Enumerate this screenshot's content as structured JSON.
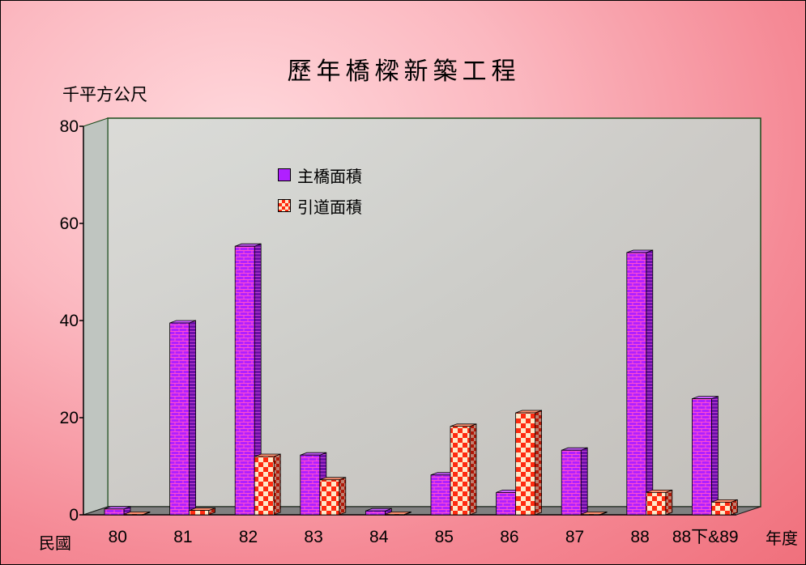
{
  "chart_data": {
    "type": "bar",
    "title": "歷年橋樑新築工程",
    "ylabel": "千平方公尺",
    "xlabel_left": "民國",
    "xlabel_right": "年度",
    "categories": [
      "80",
      "81",
      "82",
      "83",
      "84",
      "85",
      "86",
      "87",
      "88",
      "88下&89"
    ],
    "ylim": [
      0,
      80
    ],
    "yticks": [
      "0",
      "20",
      "40",
      "60",
      "80"
    ],
    "legend_position": "upper-left inside plot",
    "series": [
      {
        "name": "主橋面積",
        "values": [
          1.2,
          39.5,
          55.3,
          12.3,
          0.8,
          8.2,
          4.6,
          13.3,
          54.0,
          23.9
        ],
        "color": "#b020ff"
      },
      {
        "name": "引道面積",
        "values": [
          0.1,
          0.9,
          12.0,
          7.2,
          0.1,
          18.2,
          21.0,
          0.1,
          4.6,
          2.6
        ],
        "color": "#ff2a10"
      }
    ]
  }
}
